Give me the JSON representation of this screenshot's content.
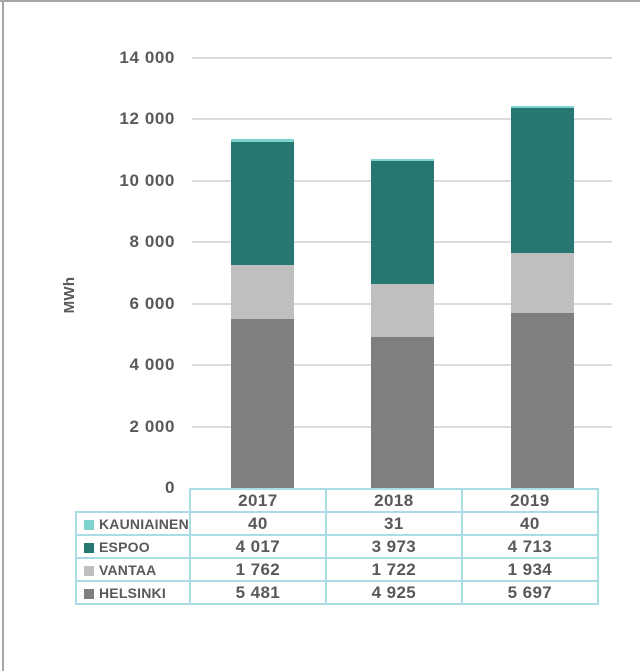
{
  "chart_data": {
    "type": "bar",
    "stacked": true,
    "title": "",
    "xlabel": "",
    "ylabel": "MWh",
    "ylim": [
      0,
      14000
    ],
    "ytick_step": 2000,
    "grid": true,
    "legend_position": "table-left",
    "number_format": "space-thousands",
    "categories": [
      "2017",
      "2018",
      "2019"
    ],
    "series": [
      {
        "name": "KAUNIAINEN",
        "color": "#7dd3cd",
        "values": [
          40,
          31,
          40
        ]
      },
      {
        "name": "ESPOO",
        "color": "#267672",
        "values": [
          4017,
          3973,
          4713
        ]
      },
      {
        "name": "VANTAA",
        "color": "#bfbfbf",
        "values": [
          1762,
          1722,
          1934
        ]
      },
      {
        "name": "HELSINKI",
        "color": "#7f7f7f",
        "values": [
          5481,
          4925,
          5697
        ]
      }
    ]
  },
  "colors": {
    "grid_line": "#dbdbdb",
    "axis_text": "#595959",
    "table_border": "#aadce6",
    "frame_border": "#a6a6a6"
  }
}
